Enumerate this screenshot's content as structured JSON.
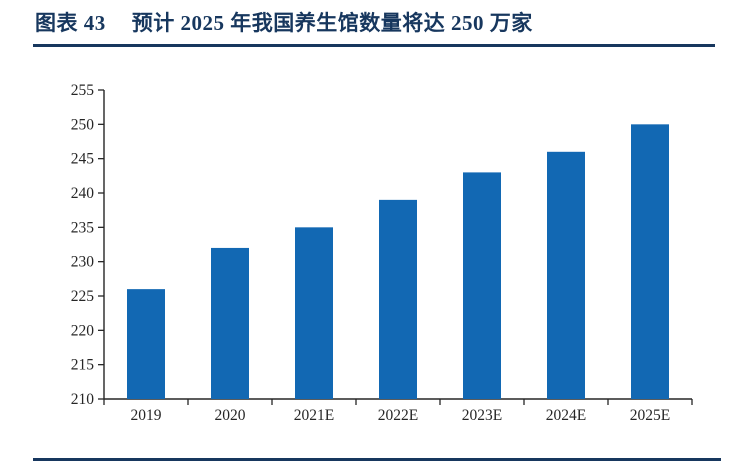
{
  "header": {
    "title_label": "图表 43",
    "title_text": "预计 2025 年我国养生馆数量将达 250 万家"
  },
  "colors": {
    "accent_navy": "#17375E",
    "bar_blue": "#1268B3",
    "axis_line": "#262626",
    "tick_text": "#262626"
  },
  "chart_data": {
    "type": "bar",
    "title": "预计 2025 年我国养生馆数量将达 250 万家",
    "categories": [
      "2019",
      "2020",
      "2021E",
      "2022E",
      "2023E",
      "2024E",
      "2025E"
    ],
    "values": [
      226,
      232,
      235,
      239,
      243,
      246,
      250
    ],
    "unit": "万家",
    "xlabel": "",
    "ylabel": "",
    "ylim": [
      210,
      255
    ],
    "ytick_step": 5,
    "yticks": [
      210,
      215,
      220,
      225,
      230,
      235,
      240,
      245,
      250,
      255
    ],
    "grid": false,
    "legend": "none",
    "bar_color": "#1268B3"
  }
}
